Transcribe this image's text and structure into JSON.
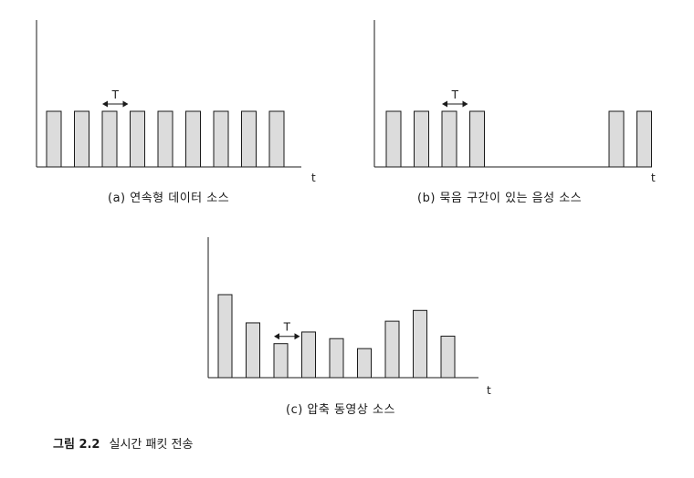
{
  "panels": [
    {
      "caption": "(a) 연속형 데이터 소스",
      "axis_label": "t",
      "period_label": "T",
      "bars": [
        1,
        1,
        1,
        1,
        1,
        1,
        1,
        1,
        1
      ]
    },
    {
      "caption": "(b) 묵음 구간이 있는 음성 소스",
      "axis_label": "t",
      "period_label": "T",
      "bars": [
        1,
        1,
        1,
        1,
        0,
        0,
        0,
        0,
        1,
        1
      ]
    },
    {
      "caption": "(c) 압축 동영상 소스",
      "axis_label": "t",
      "period_label": "T",
      "bars": [
        1.0,
        0.66,
        0.41,
        0.55,
        0.47,
        0.35,
        0.68,
        0.81,
        0.5
      ]
    }
  ],
  "figure_caption": {
    "number": "그림 2.2",
    "title": "실시간 패킷 전송"
  },
  "colors": {
    "bar_fill": "#dcdcdc",
    "line": "#1a1a1a"
  }
}
